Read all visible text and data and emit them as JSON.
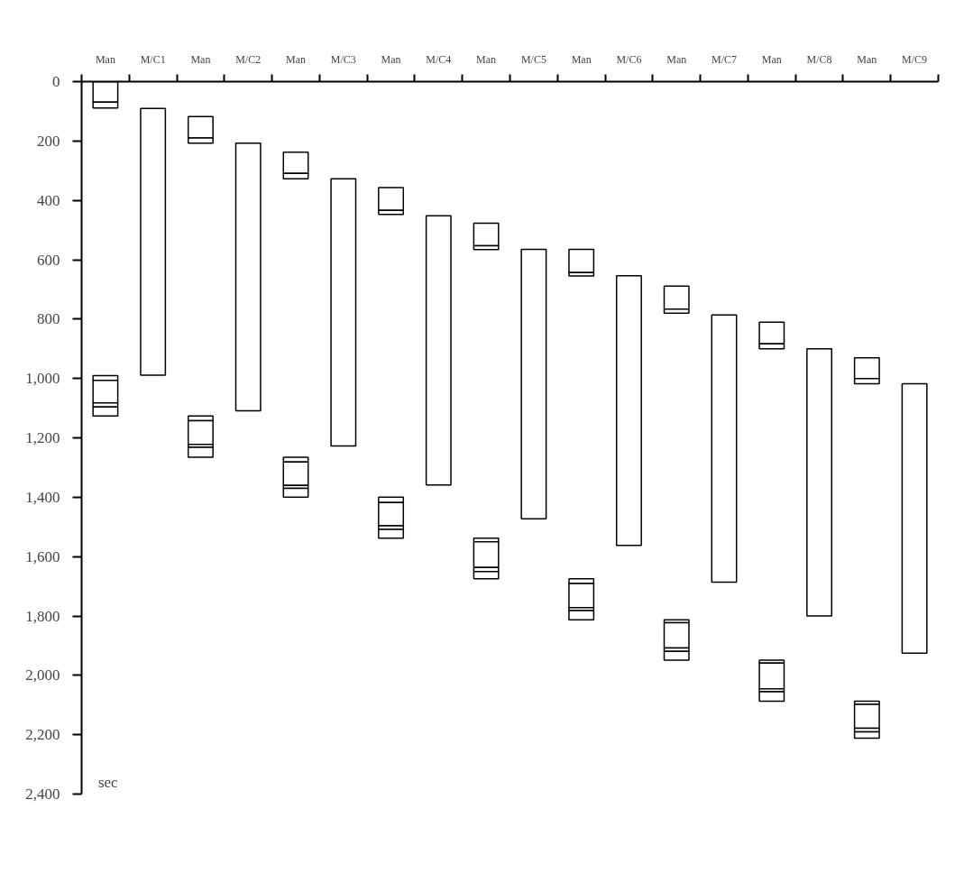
{
  "chart_data": {
    "type": "bar",
    "categories": [
      "Man",
      "M/C1",
      "Man",
      "M/C2",
      "Man",
      "M/C3",
      "Man",
      "M/C4",
      "Man",
      "M/C5",
      "Man",
      "M/C6",
      "Man",
      "M/C7",
      "Man",
      "M/C8",
      "Man",
      "M/C9"
    ],
    "series": [
      {
        "color": "#ffffff",
        "base": [
          0,
          null,
          118,
          null,
          238,
          null,
          357,
          null,
          477,
          null,
          565,
          null,
          689,
          null,
          810,
          null,
          930,
          null
        ],
        "values": [
          69,
          null,
          72,
          null,
          71,
          null,
          77,
          null,
          76,
          null,
          78,
          null,
          77,
          null,
          73,
          null,
          70,
          null
        ]
      },
      {
        "color": "#ffffff",
        "base": [
          69,
          null,
          190,
          null,
          309,
          null,
          434,
          null,
          553,
          null,
          643,
          null,
          766,
          null,
          883,
          null,
          1000,
          null
        ],
        "values": [
          20,
          null,
          17,
          null,
          18,
          null,
          13,
          null,
          13,
          null,
          12,
          null,
          14,
          null,
          17,
          null,
          18,
          null
        ]
      },
      {
        "color": "#ffffff",
        "base": [
          990,
          null,
          1126,
          null,
          1265,
          null,
          1400,
          null,
          1538,
          null,
          1675,
          null,
          1813,
          null,
          1949,
          null,
          2087,
          null
        ],
        "values": [
          16,
          null,
          16,
          null,
          16,
          null,
          18,
          null,
          12,
          null,
          16,
          null,
          10,
          null,
          10,
          null,
          11,
          null
        ]
      },
      {
        "color": "#ffffff",
        "base": [
          1006,
          null,
          1142,
          null,
          1281,
          null,
          1418,
          null,
          1550,
          null,
          1691,
          null,
          1823,
          null,
          1959,
          null,
          2098,
          null
        ],
        "values": [
          76,
          null,
          80,
          null,
          79,
          null,
          78,
          null,
          87,
          null,
          81,
          null,
          85,
          null,
          86,
          null,
          80,
          null
        ]
      },
      {
        "color": "#ffffff",
        "base": [
          1082,
          null,
          1222,
          null,
          1360,
          null,
          1496,
          null,
          1637,
          null,
          1772,
          null,
          1908,
          null,
          2045,
          null,
          2178,
          null
        ],
        "values": [
          14,
          null,
          10,
          null,
          10,
          null,
          12,
          null,
          13,
          null,
          10,
          null,
          11,
          null,
          10,
          null,
          12,
          null
        ]
      },
      {
        "color": "#ffffff",
        "base": [
          1096,
          null,
          1232,
          null,
          1370,
          null,
          1508,
          null,
          1650,
          null,
          1782,
          null,
          1919,
          null,
          2055,
          null,
          2190,
          null
        ],
        "values": [
          30,
          null,
          33,
          null,
          30,
          null,
          30,
          null,
          25,
          null,
          31,
          null,
          30,
          null,
          32,
          null,
          22,
          null
        ]
      },
      {
        "color": "#ffffff",
        "base": [
          null,
          90,
          null,
          207,
          null,
          327,
          null,
          452,
          null,
          565,
          null,
          654,
          null,
          786,
          null,
          900,
          null,
          1018
        ],
        "values": [
          null,
          899,
          null,
          902,
          null,
          900,
          null,
          907,
          null,
          908,
          null,
          908,
          null,
          900,
          null,
          900,
          null,
          907
        ]
      }
    ],
    "ylim": [
      2400,
      0
    ],
    "yticks": [
      0,
      200,
      400,
      600,
      800,
      {
        "value": 1000,
        "label": "1,000"
      },
      {
        "value": 1200,
        "label": "1,200"
      },
      {
        "value": 1400,
        "label": "1,400"
      },
      {
        "value": 1600,
        "label": "1,600"
      },
      {
        "value": 1800,
        "label": "1,800"
      },
      {
        "value": 2000,
        "label": "2,000"
      },
      {
        "value": 2200,
        "label": "2,200"
      },
      {
        "value": 2400,
        "label": "2,400"
      }
    ],
    "ylabel": "sec",
    "grid": false
  }
}
